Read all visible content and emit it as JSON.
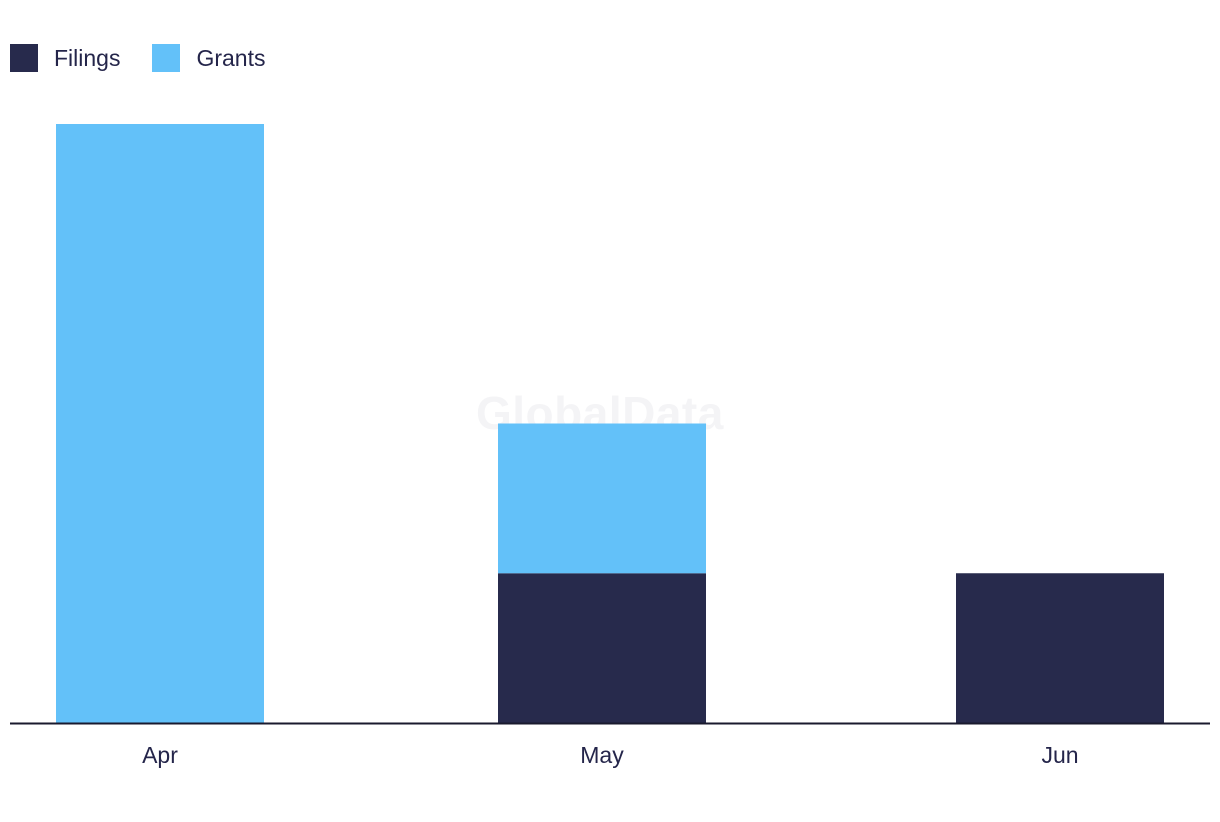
{
  "chart_data": {
    "type": "bar",
    "stacked": true,
    "categories": [
      "Apr",
      "May",
      "Jun"
    ],
    "series": [
      {
        "name": "Filings",
        "color": "#272a4c",
        "values": [
          0,
          1,
          1
        ]
      },
      {
        "name": "Grants",
        "color": "#63c1f9",
        "values": [
          4,
          1,
          0
        ]
      }
    ],
    "ylim": [
      0,
      4
    ],
    "grid": false,
    "legend_position": "top-left"
  },
  "watermark": "GlobalData"
}
